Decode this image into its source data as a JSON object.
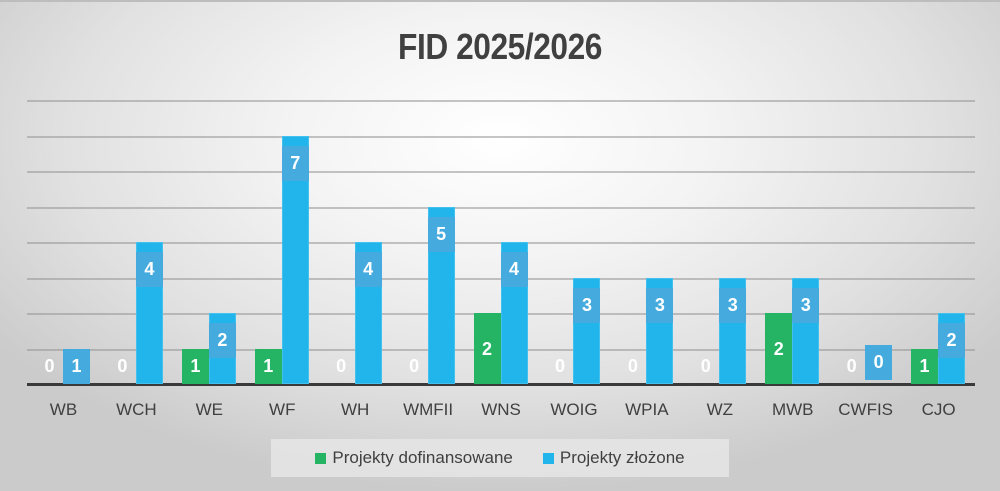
{
  "chart_data": {
    "type": "bar",
    "title": "FID 2025/2026",
    "xlabel": "",
    "ylabel": "",
    "ylim": [
      0,
      8
    ],
    "grid": true,
    "legend_position": "bottom",
    "categories": [
      "WB",
      "WCH",
      "WE",
      "WF",
      "WH",
      "WMFII",
      "WNS",
      "WOIG",
      "WPIA",
      "WZ",
      "MWB",
      "CWFIS",
      "CJO"
    ],
    "series": [
      {
        "name": "Projekty dofinansowane",
        "color": "#24b463",
        "values": [
          0,
          0,
          1,
          1,
          0,
          0,
          2,
          0,
          0,
          0,
          2,
          0,
          1
        ]
      },
      {
        "name": "Projekty złożone",
        "color": "#22b5eb",
        "values": [
          1,
          4,
          2,
          7,
          4,
          5,
          4,
          3,
          3,
          3,
          3,
          0,
          2
        ]
      }
    ]
  },
  "legend": {
    "items": [
      {
        "label": "Projekty dofinansowane",
        "color": "#24b463"
      },
      {
        "label": "Projekty złożone",
        "color": "#22b5eb"
      }
    ]
  }
}
